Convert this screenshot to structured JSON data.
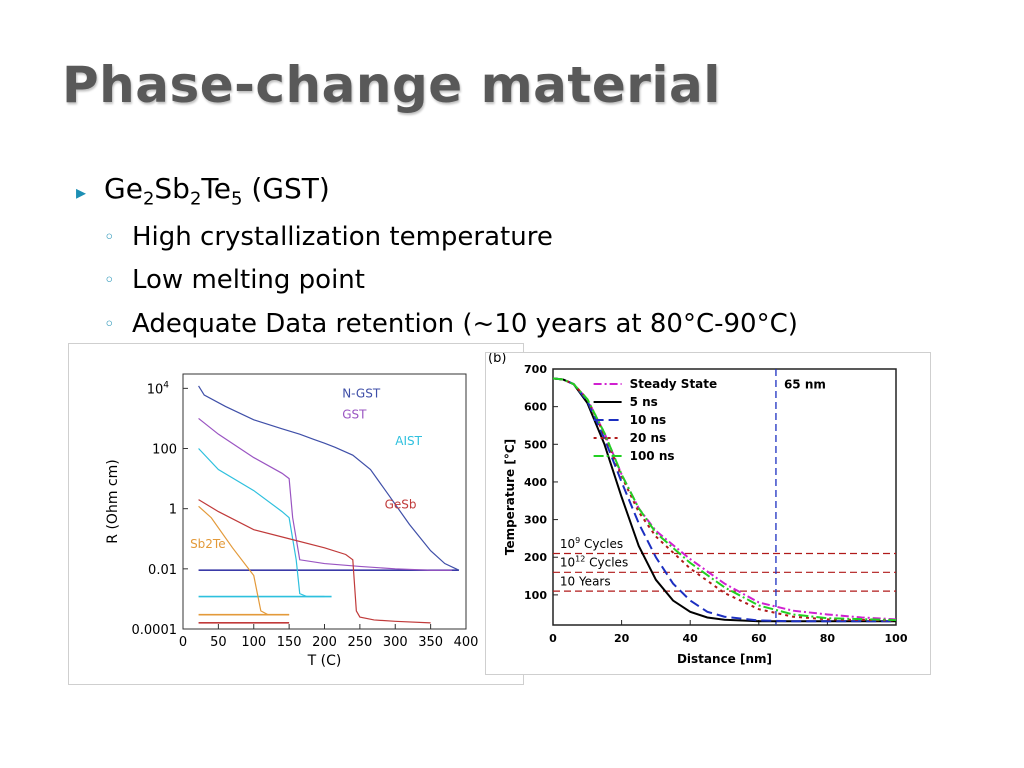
{
  "slide": {
    "title": "Phase-change material",
    "bullet": {
      "ge": "Ge",
      "ge_sub": "2",
      "sb": "Sb",
      "sb_sub": "2",
      "te": "Te",
      "te_sub": "5",
      "rest": " (GST)"
    },
    "subs": [
      "High crystallization temperature",
      "Low melting point",
      "Adequate Data retention (~10 years at 80°C-90°C)"
    ],
    "colors": {
      "accent": "#1d8fb4",
      "title": "#595959"
    }
  },
  "chart_data": [
    {
      "type": "line",
      "xlabel": "T (C)",
      "ylabel": "R (Ohm cm)",
      "y_scale": "log",
      "xlim": [
        0,
        400
      ],
      "ylim": [
        0.0001,
        30000
      ],
      "x_ticks": [
        "0",
        "50",
        "100",
        "150",
        "200",
        "250",
        "300",
        "350",
        "400"
      ],
      "y_ticks": [
        "10^4",
        "100",
        "1",
        "0.01",
        "0.0001"
      ],
      "series": [
        {
          "name": "N-GST",
          "color": "#3f4fa8",
          "x": [
            22,
            30,
            60,
            100,
            140,
            165,
            185,
            200,
            215,
            240,
            265,
            290,
            320,
            350,
            370,
            390
          ],
          "y": [
            12000,
            6000,
            2500,
            900,
            450,
            300,
            200,
            150,
            110,
            60,
            20,
            3,
            0.3,
            0.04,
            0.015,
            0.009
          ]
        },
        {
          "name": "GST",
          "color": "#9a55c2",
          "x": [
            22,
            50,
            100,
            140,
            150,
            155,
            165,
            200,
            250,
            300,
            350,
            380
          ],
          "y": [
            1000,
            300,
            50,
            15,
            10,
            0.5,
            0.02,
            0.015,
            0.012,
            0.01,
            0.009,
            0.009
          ]
        },
        {
          "name": "AIST",
          "color": "#2ec0de",
          "x": [
            22,
            50,
            100,
            140,
            150,
            160,
            165,
            175,
            200
          ],
          "y": [
            100,
            20,
            4,
            0.8,
            0.5,
            0.02,
            0.0015,
            0.0012,
            0.0012
          ]
        },
        {
          "name": "GeSb",
          "color": "#c03a3a",
          "x": [
            22,
            50,
            100,
            150,
            200,
            230,
            240,
            245,
            250,
            270,
            300,
            350
          ],
          "y": [
            2,
            0.8,
            0.2,
            0.1,
            0.05,
            0.03,
            0.02,
            0.0004,
            0.00025,
            0.0002,
            0.00018,
            0.00016
          ]
        },
        {
          "name": "Sb2Te",
          "color": "#e39a3a",
          "x": [
            22,
            40,
            70,
            100,
            110,
            120,
            150
          ],
          "y": [
            1.2,
            0.5,
            0.05,
            0.006,
            0.0004,
            0.0003,
            0.0003
          ]
        }
      ],
      "flat_lines": [
        {
          "color": "#3a3aa8",
          "x": [
            22,
            390
          ],
          "y": 0.009
        },
        {
          "color": "#2ec0de",
          "x": [
            22,
            210
          ],
          "y": 0.0012
        },
        {
          "color": "#e39a3a",
          "x": [
            22,
            150
          ],
          "y": 0.0003
        },
        {
          "color": "#c03a3a",
          "x": [
            22,
            150
          ],
          "y": 0.00016
        }
      ],
      "labels": [
        {
          "text": "N-GST",
          "x": 225,
          "y": 5000,
          "color": "#3f4fa8"
        },
        {
          "text": "GST",
          "x": 225,
          "y": 1000,
          "color": "#9a55c2"
        },
        {
          "text": "AIST",
          "x": 300,
          "y": 130,
          "color": "#2ec0de"
        },
        {
          "text": "GeSb",
          "x": 285,
          "y": 1.0,
          "color": "#c03a3a"
        },
        {
          "text": "Sb2Te",
          "x": 10,
          "y": 0.05,
          "color": "#e39a3a"
        }
      ]
    },
    {
      "type": "line",
      "panel_label": "(b)",
      "xlabel": "Distance [nm]",
      "ylabel": "Temperature [°C]",
      "xlim": [
        0,
        100
      ],
      "ylim": [
        20,
        700
      ],
      "x_ticks": [
        0,
        20,
        40,
        60,
        80,
        100
      ],
      "y_ticks": [
        100,
        200,
        300,
        400,
        500,
        600,
        700
      ],
      "series": [
        {
          "name": "Steady State",
          "color": "#d020d0",
          "dash": "8,3,2,3",
          "x": [
            0,
            3,
            6,
            10,
            15,
            20,
            25,
            30,
            40,
            50,
            60,
            70,
            80,
            90,
            100
          ],
          "y": [
            675,
            672,
            660,
            620,
            530,
            420,
            330,
            270,
            195,
            130,
            80,
            58,
            48,
            40,
            35
          ]
        },
        {
          "name": "5 ns",
          "color": "#000000",
          "dash": "",
          "x": [
            0,
            3,
            6,
            10,
            15,
            20,
            25,
            30,
            35,
            40,
            45,
            50,
            60,
            70,
            100
          ],
          "y": [
            675,
            672,
            660,
            610,
            500,
            360,
            230,
            140,
            85,
            55,
            40,
            34,
            30,
            30,
            30
          ]
        },
        {
          "name": "10 ns",
          "color": "#1c2fc0",
          "dash": "10,5",
          "x": [
            0,
            3,
            6,
            10,
            15,
            20,
            25,
            30,
            35,
            40,
            45,
            50,
            60,
            70,
            100
          ],
          "y": [
            675,
            672,
            660,
            615,
            515,
            400,
            290,
            200,
            130,
            85,
            55,
            42,
            32,
            30,
            30
          ]
        },
        {
          "name": "20 ns",
          "color": "#b01a1a",
          "dash": "3,4",
          "x": [
            0,
            3,
            6,
            10,
            15,
            20,
            25,
            30,
            40,
            50,
            60,
            70,
            80,
            100
          ],
          "y": [
            675,
            672,
            660,
            620,
            525,
            415,
            320,
            255,
            170,
            105,
            62,
            42,
            35,
            32
          ]
        },
        {
          "name": "100 ns",
          "color": "#22d022",
          "dash": "10,3,2,3",
          "x": [
            0,
            3,
            6,
            10,
            15,
            20,
            25,
            30,
            40,
            50,
            60,
            70,
            80,
            100
          ],
          "y": [
            675,
            672,
            660,
            620,
            530,
            420,
            330,
            265,
            185,
            120,
            72,
            48,
            38,
            33
          ]
        }
      ],
      "hlines": [
        {
          "y": 210
        },
        {
          "y": 160
        },
        {
          "y": 110
        }
      ],
      "vline": {
        "x": 65,
        "label": "65 nm"
      },
      "annotations": [
        {
          "base": "10",
          "sup": "9",
          "rest": " Cycles",
          "x": 2,
          "y": 225
        },
        {
          "base": "10",
          "sup": "12",
          "rest": " Cycles",
          "x": 2,
          "y": 175
        },
        {
          "base": "10 Years",
          "sup": "",
          "rest": "",
          "x": 2,
          "y": 125
        }
      ]
    }
  ]
}
